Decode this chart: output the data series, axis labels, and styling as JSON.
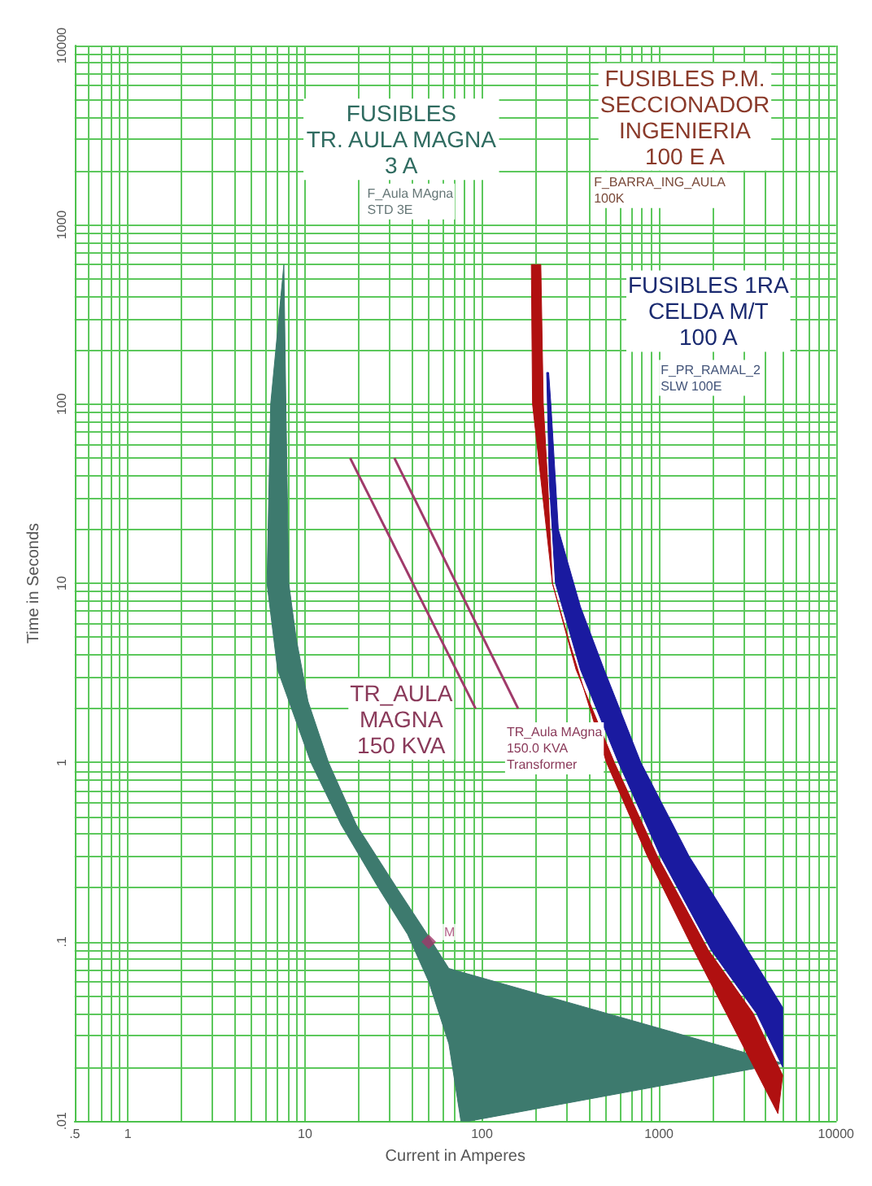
{
  "chart_data": {
    "type": "area",
    "xlabel": "Current in Amperes",
    "ylabel": "Time in Seconds",
    "log": "xy",
    "grid": true,
    "legend": false,
    "xlim": [
      0.5,
      10000
    ],
    "ylim": [
      0.01,
      10000
    ],
    "xticks": [
      {
        "value": 0.5,
        "label": ".5"
      },
      {
        "value": 0.6,
        "label": null
      },
      {
        "value": 0.7,
        "label": null
      },
      {
        "value": 0.8,
        "label": null
      },
      {
        "value": 0.9,
        "label": null
      },
      1,
      {
        "value": 2,
        "label": null
      },
      {
        "value": 3,
        "label": null
      },
      {
        "value": 4,
        "label": null
      },
      {
        "value": 5,
        "label": null
      },
      {
        "value": 6,
        "label": null
      },
      {
        "value": 7,
        "label": null
      },
      {
        "value": 8,
        "label": null
      },
      {
        "value": 9,
        "label": null
      },
      10,
      {
        "value": 20,
        "label": null
      },
      {
        "value": 30,
        "label": null
      },
      {
        "value": 40,
        "label": null
      },
      {
        "value": 50,
        "label": null
      },
      {
        "value": 60,
        "label": null
      },
      {
        "value": 70,
        "label": null
      },
      {
        "value": 80,
        "label": null
      },
      {
        "value": 90,
        "label": null
      },
      100,
      {
        "value": 200,
        "label": null
      },
      {
        "value": 300,
        "label": null
      },
      {
        "value": 400,
        "label": null
      },
      {
        "value": 500,
        "label": null
      },
      {
        "value": 600,
        "label": null
      },
      {
        "value": 700,
        "label": null
      },
      {
        "value": 800,
        "label": null
      },
      {
        "value": 900,
        "label": null
      },
      1000,
      {
        "value": 2000,
        "label": null
      },
      {
        "value": 3000,
        "label": null
      },
      {
        "value": 4000,
        "label": null
      },
      {
        "value": 5000,
        "label": null
      },
      {
        "value": 6000,
        "label": null
      },
      {
        "value": 7000,
        "label": null
      },
      {
        "value": 8000,
        "label": null
      },
      {
        "value": 9000,
        "label": null
      },
      10000
    ],
    "yticks": [
      {
        "value": 0.01,
        "label": ".01"
      },
      {
        "value": 0.02,
        "label": null
      },
      {
        "value": 0.03,
        "label": null
      },
      {
        "value": 0.04,
        "label": null
      },
      {
        "value": 0.05,
        "label": null
      },
      {
        "value": 0.06,
        "label": null
      },
      {
        "value": 0.07,
        "label": null
      },
      {
        "value": 0.08,
        "label": null
      },
      {
        "value": 0.09,
        "label": null
      },
      {
        "value": 0.1,
        "label": ".1"
      },
      {
        "value": 0.2,
        "label": null
      },
      {
        "value": 0.3,
        "label": null
      },
      {
        "value": 0.4,
        "label": null
      },
      {
        "value": 0.5,
        "label": null
      },
      {
        "value": 0.6,
        "label": null
      },
      {
        "value": 0.7,
        "label": null
      },
      {
        "value": 0.8,
        "label": null
      },
      {
        "value": 0.9,
        "label": null
      },
      1,
      {
        "value": 2,
        "label": null
      },
      {
        "value": 3,
        "label": null
      },
      {
        "value": 4,
        "label": null
      },
      {
        "value": 5,
        "label": null
      },
      {
        "value": 6,
        "label": null
      },
      {
        "value": 7,
        "label": null
      },
      {
        "value": 8,
        "label": null
      },
      {
        "value": 9,
        "label": null
      },
      10,
      {
        "value": 20,
        "label": null
      },
      {
        "value": 30,
        "label": null
      },
      {
        "value": 40,
        "label": null
      },
      {
        "value": 50,
        "label": null
      },
      {
        "value": 60,
        "label": null
      },
      {
        "value": 70,
        "label": null
      },
      {
        "value": 80,
        "label": null
      },
      {
        "value": 90,
        "label": null
      },
      100,
      {
        "value": 200,
        "label": null
      },
      {
        "value": 300,
        "label": null
      },
      {
        "value": 400,
        "label": null
      },
      {
        "value": 500,
        "label": null
      },
      {
        "value": 600,
        "label": null
      },
      {
        "value": 700,
        "label": null
      },
      {
        "value": 800,
        "label": null
      },
      {
        "value": 900,
        "label": null
      },
      1000,
      {
        "value": 2000,
        "label": null
      },
      {
        "value": 3000,
        "label": null
      },
      {
        "value": 4000,
        "label": null
      },
      {
        "value": 5000,
        "label": null
      },
      {
        "value": 6000,
        "label": null
      },
      {
        "value": 7000,
        "label": null
      },
      {
        "value": 8000,
        "label": null
      },
      {
        "value": 9000,
        "label": null
      },
      10000
    ],
    "series": [
      {
        "color": "#3d7a6e",
        "x": [
          7.6,
          6.4,
          6.1,
          7,
          10.8,
          16,
          26,
          38,
          50,
          65,
          76,
          85,
          5000,
          65,
          50,
          33,
          19.5,
          13.6,
          10.4,
          8.9,
          8.1,
          7.8,
          7.6
        ],
        "values": [
          600,
          100,
          10,
          3.3,
          1,
          0.45,
          0.2,
          0.11,
          0.06,
          0.027,
          0.01,
          0.01,
          0.021,
          0.071,
          0.107,
          0.2,
          0.45,
          1,
          2.2,
          5,
          10,
          100,
          600
        ]
      },
      {
        "color": "#b01010",
        "x": [
          190,
          193,
          250,
          316,
          505,
          860,
          1570,
          2650,
          4700,
          5000,
          3400,
          1900,
          980,
          560,
          340,
          250,
          235,
          222,
          215,
          190
        ],
        "values": [
          600,
          100,
          10,
          4.5,
          1,
          0.3,
          0.09,
          0.033,
          0.011,
          0.018,
          0.04,
          0.09,
          0.3,
          1,
          3.3,
          10,
          37,
          100,
          600,
          600
        ]
      },
      {
        "color": "#1a1aa0",
        "x": [
          232,
          240,
          260,
          360,
          590,
          1020,
          1970,
          3550,
          5000,
          5000,
          2800,
          1480,
          790,
          490,
          360,
          270,
          245,
          238,
          232
        ],
        "values": [
          150,
          37,
          10,
          3.3,
          1,
          0.3,
          0.09,
          0.04,
          0.02,
          0.043,
          0.11,
          0.3,
          1,
          3.3,
          7.4,
          20,
          100,
          150,
          150
        ]
      },
      {
        "type": "line",
        "color": "#a03a6a",
        "x": [
          18,
          92
        ],
        "values": [
          50,
          2
        ]
      },
      {
        "type": "line",
        "color": "#a03a6a",
        "x": [
          32,
          160
        ],
        "values": [
          50,
          2
        ]
      },
      {
        "type": "scatter",
        "name": "M",
        "marker": "diamond",
        "color": "#a03a6a",
        "x": [
          50
        ],
        "values": [
          0.1
        ]
      }
    ],
    "annotations": [
      "FUSIBLES\nTR. AULA MAGNA\n3 A",
      "FUSIBLES P.M.\nSECCIONADOR\nINGENIERIA\n100 E A",
      "FUSIBLES 1RA\nCELDA M/T\n100 A",
      "F_Aula MAgna\nSTD 3E",
      "F_BARRA_ING_AULA\n100K",
      "F_PR_RAMAL_2\nSLW 100E",
      "TR_AULA\nMAGNA\n150 KVA",
      "TR_Aula MAgna\n150.0 KVA\nTransformer"
    ]
  }
}
